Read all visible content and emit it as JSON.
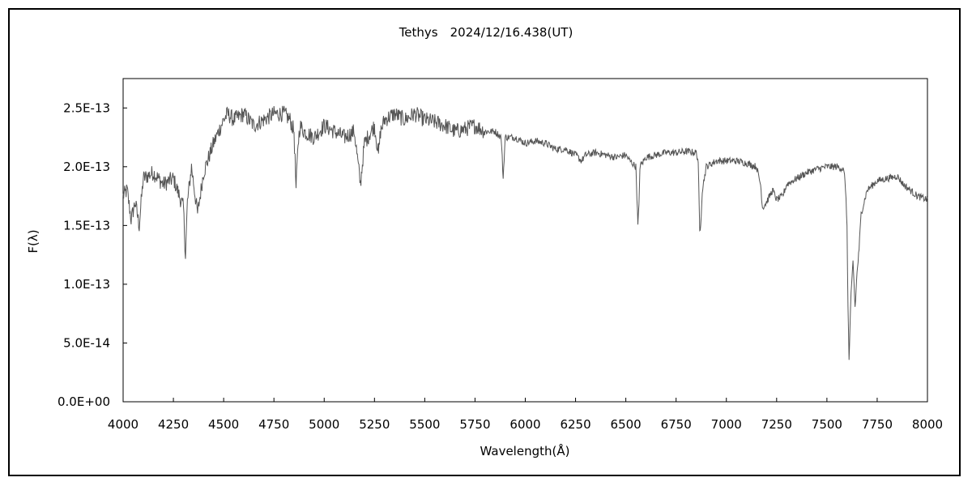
{
  "chart_data": {
    "type": "line",
    "title": "Tethys　2024/12/16.438(UT)",
    "xlabel": "Wavelength(Å)",
    "ylabel": "F(λ)",
    "xlim": [
      4000,
      8000
    ],
    "ylim": [
      0,
      2.75e-13
    ],
    "grid": false,
    "legend": "none",
    "x_ticks": [
      4000,
      4250,
      4500,
      4750,
      5000,
      5250,
      5500,
      5750,
      6000,
      6250,
      6500,
      6750,
      7000,
      7250,
      7500,
      7750,
      8000
    ],
    "x_tick_labels": [
      "4000",
      "4250",
      "4500",
      "4750",
      "5000",
      "5250",
      "5500",
      "5750",
      "6000",
      "6250",
      "6500",
      "6750",
      "7000",
      "7250",
      "7500",
      "7750",
      "8000"
    ],
    "y_ticks": [
      0,
      5e-14,
      1e-13,
      1.5e-13,
      2e-13,
      2.5e-13
    ],
    "y_tick_labels": [
      "0.0E+00",
      "5.0E-14",
      "1.0E-13",
      "1.5E-13",
      "2.0E-13",
      "2.5E-13"
    ],
    "line_color": "#555555",
    "series": [
      {
        "x": [
          4000,
          4020,
          4040,
          4060,
          4080,
          4100,
          4150,
          4200,
          4250,
          4280,
          4300,
          4310,
          4320,
          4340,
          4370,
          4400,
          4450,
          4500,
          4520,
          4550,
          4600,
          4650,
          4700,
          4750,
          4800,
          4830,
          4850,
          4860,
          4870,
          4880,
          4900,
          4950,
          5000,
          5050,
          5100,
          5150,
          5170,
          5180,
          5200,
          5250,
          5270,
          5280,
          5300,
          5350,
          5400,
          5450,
          5500,
          5550,
          5600,
          5650,
          5700,
          5750,
          5800,
          5850,
          5880,
          5890,
          5900,
          5950,
          6000,
          6050,
          6100,
          6150,
          6200,
          6250,
          6280,
          6300,
          6350,
          6400,
          6450,
          6500,
          6520,
          6550,
          6560,
          6565,
          6570,
          6600,
          6650,
          6700,
          6750,
          6800,
          6850,
          6860,
          6868,
          6875,
          6880,
          6890,
          6900,
          6950,
          7000,
          7050,
          7100,
          7150,
          7170,
          7180,
          7200,
          7230,
          7250,
          7280,
          7300,
          7350,
          7400,
          7450,
          7500,
          7550,
          7580,
          7590,
          7600,
          7605,
          7610,
          7620,
          7630,
          7640,
          7650,
          7660,
          7670,
          7700,
          7750,
          7800,
          7850,
          7880,
          7900,
          7950,
          8000
        ],
        "y": [
          1.75e-13,
          1.8e-13,
          1.55e-13,
          1.7e-13,
          1.5e-13,
          1.9e-13,
          1.95e-13,
          1.85e-13,
          1.9e-13,
          1.75e-13,
          1.65e-13,
          1.25e-13,
          1.7e-13,
          2e-13,
          1.6e-13,
          1.95e-13,
          2.2e-13,
          2.4e-13,
          2.45e-13,
          2.4e-13,
          2.45e-13,
          2.35e-13,
          2.4e-13,
          2.45e-13,
          2.45e-13,
          2.4e-13,
          2.3e-13,
          1.8e-13,
          2.2e-13,
          2.35e-13,
          2.3e-13,
          2.25e-13,
          2.35e-13,
          2.3e-13,
          2.25e-13,
          2.3e-13,
          2e-13,
          1.85e-13,
          2.2e-13,
          2.35e-13,
          2.1e-13,
          2.3e-13,
          2.4e-13,
          2.45e-13,
          2.4e-13,
          2.45e-13,
          2.4e-13,
          2.38e-13,
          2.35e-13,
          2.3e-13,
          2.32e-13,
          2.35e-13,
          2.3e-13,
          2.3e-13,
          2.25e-13,
          1.9e-13,
          2.25e-13,
          2.25e-13,
          2.2e-13,
          2.22e-13,
          2.2e-13,
          2.15e-13,
          2.15e-13,
          2.1e-13,
          2.05e-13,
          2.1e-13,
          2.12e-13,
          2.1e-13,
          2.08e-13,
          2.1e-13,
          2.05e-13,
          2e-13,
          1.5e-13,
          1.65e-13,
          2e-13,
          2.08e-13,
          2.1e-13,
          2.12e-13,
          2.12e-13,
          2.13e-13,
          2.12e-13,
          2.05e-13,
          1.4e-13,
          1.6e-13,
          1.8e-13,
          1.9e-13,
          2e-13,
          2.05e-13,
          2.05e-13,
          2.05e-13,
          2.03e-13,
          2e-13,
          1.85e-13,
          1.65e-13,
          1.7e-13,
          1.8e-13,
          1.72e-13,
          1.75e-13,
          1.85e-13,
          1.9e-13,
          1.95e-13,
          1.98e-13,
          2e-13,
          2e-13,
          1.98e-13,
          1.9e-13,
          1.5e-13,
          8e-14,
          3.5e-14,
          9e-14,
          1.2e-13,
          8e-14,
          1.1e-13,
          1.3e-13,
          1.6e-13,
          1.8e-13,
          1.88e-13,
          1.9e-13,
          1.92e-13,
          1.85e-13,
          1.82e-13,
          1.75e-13,
          1.72e-13
        ]
      }
    ]
  }
}
